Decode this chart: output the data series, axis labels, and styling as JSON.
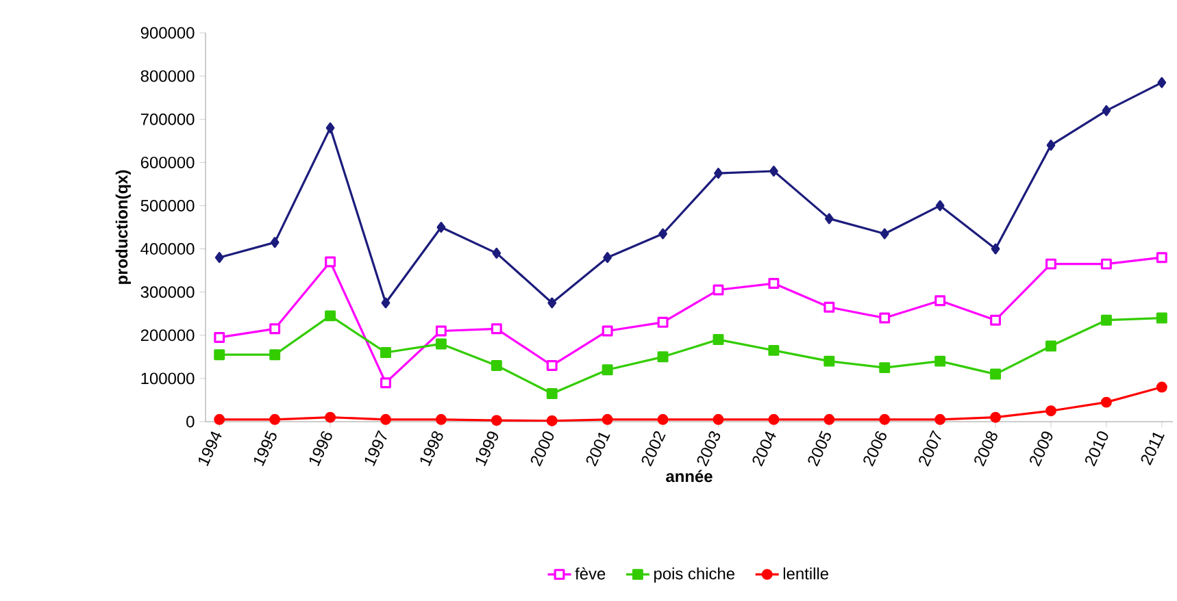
{
  "chart_data": {
    "type": "line",
    "xlabel": "année",
    "ylabel": "production(qx)",
    "categories": [
      "1994",
      "1995",
      "1996",
      "1997",
      "1998",
      "1999",
      "2000",
      "2001",
      "2002",
      "2003",
      "2004",
      "2005",
      "2006",
      "2007",
      "2008",
      "2009",
      "2010",
      "2011"
    ],
    "series": [
      {
        "color": "#1c1c7c",
        "marker": "diamond",
        "values": [
          380000,
          415000,
          680000,
          275000,
          450000,
          390000,
          275000,
          380000,
          435000,
          575000,
          580000,
          470000,
          435000,
          500000,
          400000,
          640000,
          720000,
          785000
        ]
      },
      {
        "name": "fève",
        "color": "#ff00ff",
        "marker": "square",
        "values": [
          195000,
          215000,
          370000,
          90000,
          210000,
          215000,
          130000,
          210000,
          230000,
          305000,
          320000,
          265000,
          240000,
          280000,
          235000,
          365000,
          365000,
          380000
        ]
      },
      {
        "name": "pois chiche",
        "color": "#33cc00",
        "marker": "square",
        "values": [
          155000,
          155000,
          245000,
          160000,
          180000,
          130000,
          65000,
          120000,
          150000,
          190000,
          165000,
          140000,
          125000,
          140000,
          110000,
          175000,
          235000,
          240000
        ]
      },
      {
        "name": "lentille",
        "color": "#ff0000",
        "marker": "circle",
        "values": [
          5000,
          5000,
          10000,
          5000,
          5000,
          3000,
          2000,
          5000,
          5000,
          5000,
          5000,
          5000,
          5000,
          5000,
          10000,
          25000,
          45000,
          80000
        ]
      }
    ],
    "ylim": [
      0,
      900000
    ],
    "yticks": [
      0,
      100000,
      200000,
      300000,
      400000,
      500000,
      600000,
      700000,
      800000,
      900000
    ],
    "legend": "bottom",
    "grid": false
  }
}
